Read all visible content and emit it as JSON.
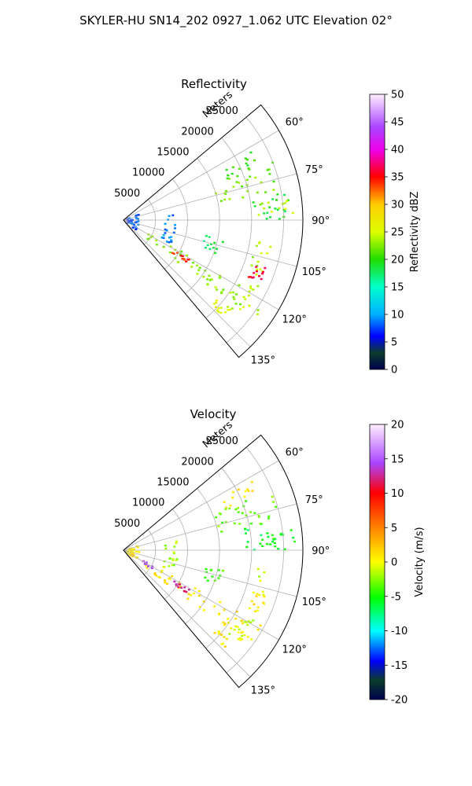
{
  "figure": {
    "title": "SKYLER-HU  SN14_202  0927_1.062 UTC Elevation 02°"
  },
  "chart_data": [
    {
      "type": "polar",
      "title": "Reflectivity",
      "rlabel": "Meters",
      "r_ticks": [
        "5000",
        "10000",
        "15000",
        "20000",
        "25000"
      ],
      "r_tick_values": [
        5000,
        10000,
        15000,
        20000,
        25000
      ],
      "theta_ticks": [
        "60°",
        "75°",
        "90°",
        "105°",
        "120°",
        "135°"
      ],
      "theta_tick_values": [
        60,
        75,
        90,
        105,
        120,
        135
      ],
      "theta_range": [
        50,
        140
      ],
      "rlim": [
        0,
        28000
      ],
      "grid": true,
      "colorbar": {
        "label": "Reflectivity dBZ",
        "range": [
          0,
          50
        ],
        "ticks": [
          "0",
          "5",
          "10",
          "15",
          "20",
          "25",
          "30",
          "35",
          "40",
          "45",
          "50"
        ],
        "tick_values": [
          0,
          5,
          10,
          15,
          20,
          25,
          30,
          35,
          40,
          45,
          50
        ]
      },
      "echoes": [
        {
          "az_range": [
            62,
            68
          ],
          "r_range": [
            17000,
            23000
          ],
          "value": 20
        },
        {
          "az_range": [
            68,
            80
          ],
          "r_range": [
            15000,
            25000
          ],
          "value": 22
        },
        {
          "az_range": [
            80,
            90
          ],
          "r_range": [
            19000,
            26000
          ],
          "value": 19
        },
        {
          "az_range": [
            83,
            88
          ],
          "r_range": [
            21000,
            27000
          ],
          "value": 24
        },
        {
          "az_range": [
            95,
            130
          ],
          "r_range": [
            21000,
            23500
          ],
          "value": 24
        },
        {
          "az_range": [
            108,
            115
          ],
          "r_range": [
            21500,
            23500
          ],
          "value": 36
        },
        {
          "az_range": [
            80,
            118
          ],
          "r_range": [
            6500,
            8500
          ],
          "value": 9
        },
        {
          "az_range": [
            70,
            130
          ],
          "r_range": [
            500,
            2500
          ],
          "value": 8
        },
        {
          "az_range": [
            118,
            128
          ],
          "r_range": [
            4000,
            26000
          ],
          "value": 23
        },
        {
          "az_range": [
            121,
            124
          ],
          "r_range": [
            9000,
            12000
          ],
          "value": 34
        },
        {
          "az_range": [
            130,
            134
          ],
          "r_range": [
            19000,
            22000
          ],
          "value": 26
        },
        {
          "az_range": [
            100,
            110
          ],
          "r_range": [
            13000,
            16000
          ],
          "value": 18
        }
      ]
    },
    {
      "type": "polar",
      "title": "Velocity",
      "rlabel": "Meters",
      "r_ticks": [
        "5000",
        "10000",
        "15000",
        "20000",
        "25000"
      ],
      "r_tick_values": [
        5000,
        10000,
        15000,
        20000,
        25000
      ],
      "theta_ticks": [
        "60°",
        "75°",
        "90°",
        "105°",
        "120°",
        "135°"
      ],
      "theta_tick_values": [
        60,
        75,
        90,
        105,
        120,
        135
      ],
      "theta_range": [
        50,
        140
      ],
      "rlim": [
        0,
        28000
      ],
      "grid": true,
      "colorbar": {
        "label": "Velocity (m/s)",
        "range": [
          -20,
          20
        ],
        "ticks": [
          "-20",
          "-15",
          "-10",
          "-5",
          "0",
          "5",
          "10",
          "15",
          "20"
        ],
        "tick_values": [
          -20,
          -15,
          -10,
          -5,
          0,
          5,
          10,
          15,
          20
        ]
      },
      "echoes": [
        {
          "az_range": [
            62,
            68
          ],
          "r_range": [
            17000,
            23000
          ],
          "value": 1
        },
        {
          "az_range": [
            68,
            80
          ],
          "r_range": [
            15000,
            25000
          ],
          "value": -3
        },
        {
          "az_range": [
            80,
            90
          ],
          "r_range": [
            19000,
            26000
          ],
          "value": -6
        },
        {
          "az_range": [
            83,
            88
          ],
          "r_range": [
            21000,
            27000
          ],
          "value": -5
        },
        {
          "az_range": [
            95,
            130
          ],
          "r_range": [
            21000,
            23500
          ],
          "value": -1
        },
        {
          "az_range": [
            108,
            115
          ],
          "r_range": [
            21500,
            23500
          ],
          "value": 1
        },
        {
          "az_range": [
            80,
            118
          ],
          "r_range": [
            6500,
            8500
          ],
          "value": -2
        },
        {
          "az_range": [
            70,
            130
          ],
          "r_range": [
            500,
            2500
          ],
          "value": 1
        },
        {
          "az_range": [
            118,
            128
          ],
          "r_range": [
            4000,
            26000
          ],
          "value": 1
        },
        {
          "az_range": [
            121,
            124
          ],
          "r_range": [
            9000,
            12000
          ],
          "value": 12
        },
        {
          "az_range": [
            118,
            124
          ],
          "r_range": [
            3500,
            6000
          ],
          "value": 15
        },
        {
          "az_range": [
            130,
            134
          ],
          "r_range": [
            19000,
            22000
          ],
          "value": 1
        },
        {
          "az_range": [
            100,
            110
          ],
          "r_range": [
            13000,
            16000
          ],
          "value": -4
        }
      ]
    }
  ]
}
